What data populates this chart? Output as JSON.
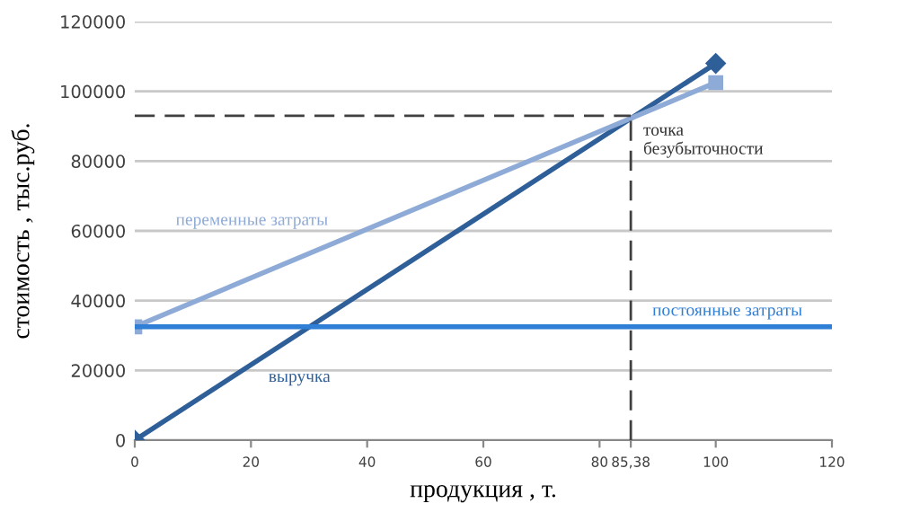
{
  "chart_data": {
    "type": "line",
    "xlabel": "продукция , т.",
    "ylabel": "стоимость , тыс.руб.",
    "xlim": [
      0,
      120
    ],
    "ylim": [
      0,
      120000
    ],
    "xticks": [
      0,
      20,
      40,
      60,
      80,
      {
        "value": 85.38,
        "label": "85,38"
      },
      100,
      120
    ],
    "yticks": [
      0,
      20000,
      40000,
      60000,
      80000,
      100000,
      120000
    ],
    "grid": "y",
    "legend": false,
    "series": [
      {
        "name": "выручка",
        "color": "#2f5f98",
        "x": [
          0,
          100
        ],
        "values": [
          0,
          108000
        ],
        "marker": "diamond"
      },
      {
        "name": "переменные затраты",
        "color": "#8eaad6",
        "x": [
          0,
          100
        ],
        "values": [
          32500,
          102500
        ],
        "marker": "square"
      },
      {
        "name": "постоянные затраты",
        "color": "#2f7fd6",
        "x": [
          0,
          120
        ],
        "values": [
          32500,
          32500
        ],
        "marker": "none"
      }
    ],
    "ref_lines": [
      {
        "axis": "x",
        "value": 85.38,
        "color": "#404040",
        "line_style": "dashed"
      },
      {
        "axis": "y",
        "value": 93000,
        "color": "#404040",
        "line_style": "dashed"
      }
    ],
    "annotations": [
      {
        "text": "точка\nбезубыточности",
        "x": 85.38,
        "y": 93000
      }
    ]
  }
}
